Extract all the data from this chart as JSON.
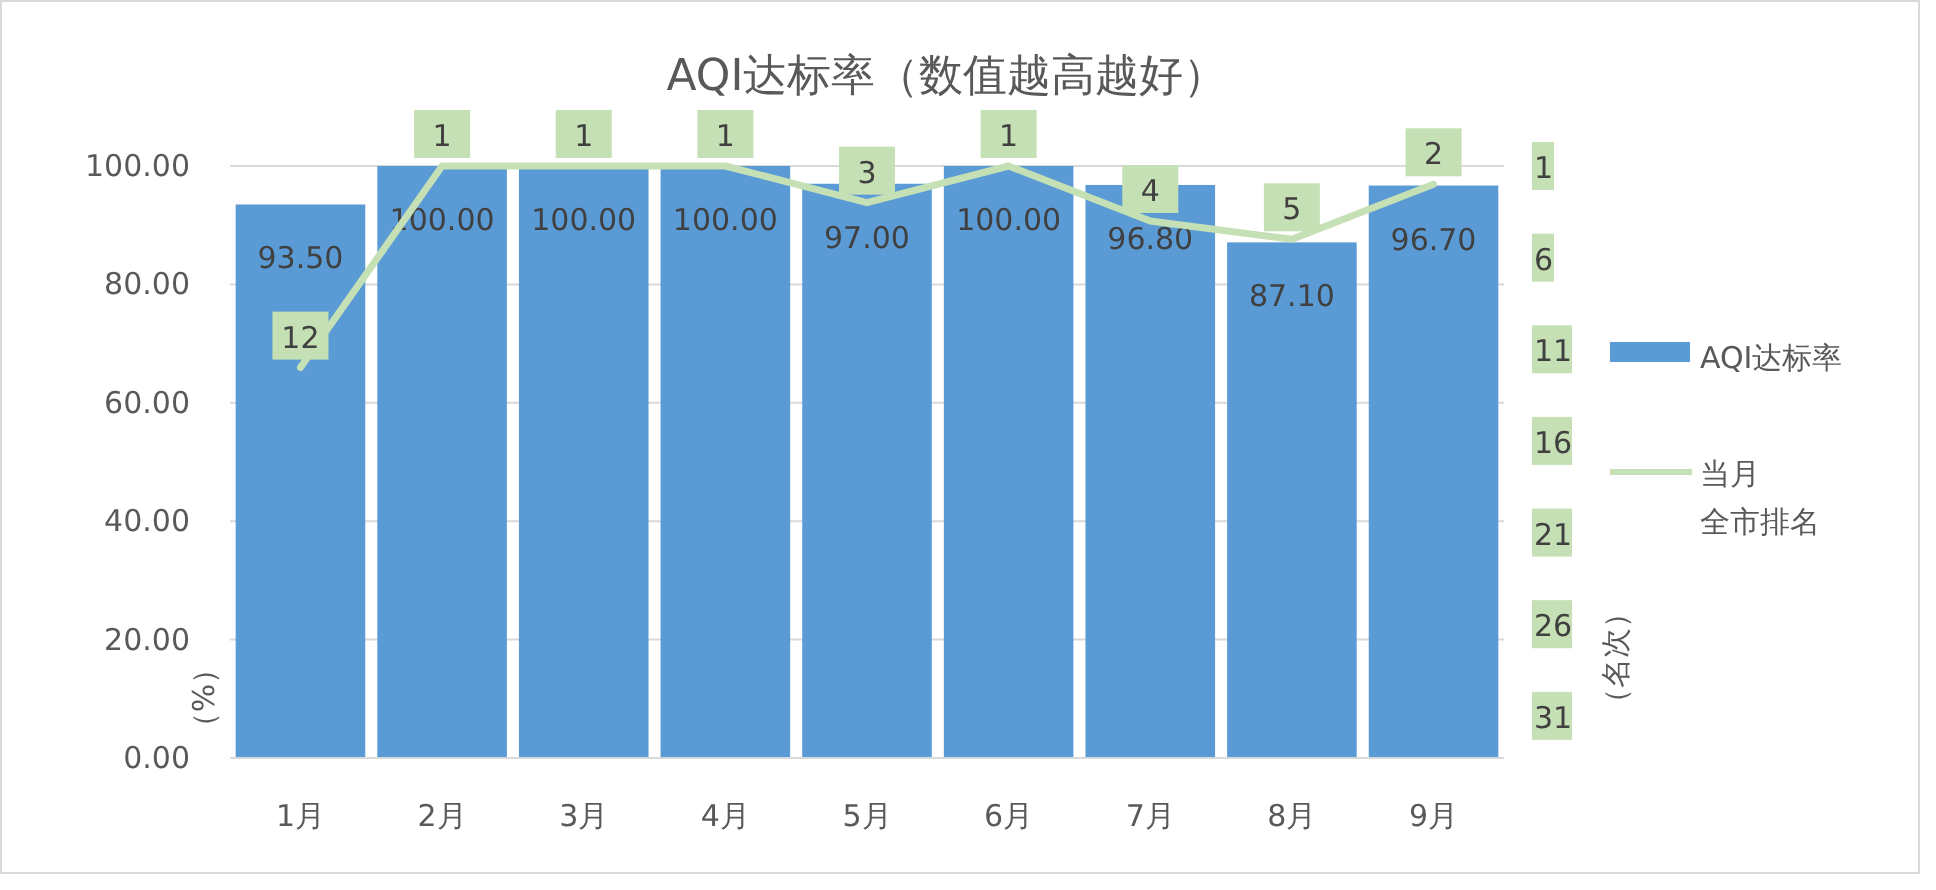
{
  "chart_data": {
    "type": "bar",
    "title": "AQI达标率（数值越高越好）",
    "categories": [
      "1月",
      "2月",
      "3月",
      "4月",
      "5月",
      "6月",
      "7月",
      "8月",
      "9月"
    ],
    "series": [
      {
        "name": "AQI达标率",
        "color": "#5b9bd5",
        "values": [
          93.5,
          100,
          100,
          100,
          97,
          100,
          96.8,
          87.1,
          96.7
        ],
        "value_labels": [
          "93.50",
          "100.00",
          "100.00",
          "100.00",
          "97.00",
          "100.00",
          "96.80",
          "87.10",
          "96.70"
        ]
      },
      {
        "name": "当月全市排名",
        "type": "line",
        "axis": "y2",
        "color": "#c5e0b4",
        "values": [
          12,
          1,
          1,
          1,
          3,
          1,
          4,
          5,
          2
        ],
        "value_labels": [
          "12",
          "1",
          "1",
          "1",
          "3",
          "1",
          "4",
          "5",
          "2"
        ]
      }
    ],
    "ylabel": "（%）",
    "y2label": "（名次）",
    "ylim": [
      0,
      100
    ],
    "yticks": [
      {
        "value": 0,
        "label": "0.00"
      },
      {
        "value": 20,
        "label": "20.00"
      },
      {
        "value": 40,
        "label": "40.00"
      },
      {
        "value": 60,
        "label": "60.00"
      },
      {
        "value": 80,
        "label": "80.00"
      },
      {
        "value": 100,
        "label": "100.00"
      }
    ],
    "y2lim": [
      33.3,
      1
    ],
    "y2ticks": [
      1,
      6,
      11,
      16,
      21,
      26,
      31
    ],
    "grid": "y",
    "legend": "right",
    "marker": "none",
    "line_style": "solid"
  }
}
